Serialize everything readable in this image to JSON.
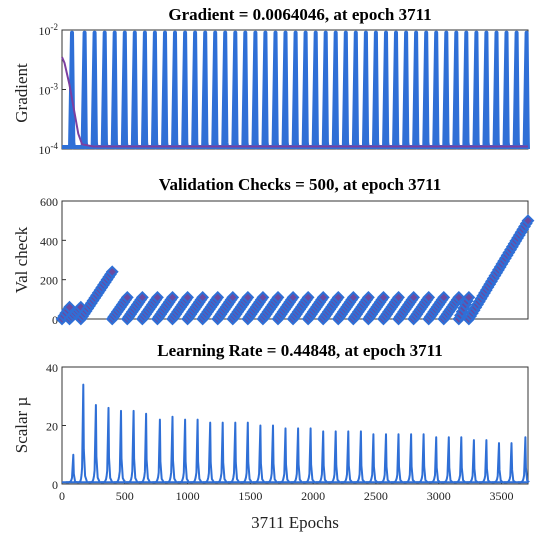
{
  "colors": {
    "series": "#2f6fd6",
    "early": "#7b3fa0",
    "marker": "#6b4aa0",
    "marker_edge": "#2f6fd6",
    "axis": "#333333"
  },
  "chart_data": [
    {
      "type": "line",
      "title": "Gradient = 0.0064046, at epoch 3711",
      "ylabel": "Gradient",
      "xlabel": "",
      "yscale": "log",
      "xlim": [
        0,
        3711
      ],
      "ylim": [
        0.0001,
        0.01
      ],
      "y_ticks": [
        {
          "value": 0.0001,
          "base": "10",
          "exp": "-4"
        },
        {
          "value": 0.001,
          "base": "10",
          "exp": "-3"
        },
        {
          "value": 0.01,
          "base": "10",
          "exp": "-2"
        }
      ],
      "series": [
        {
          "x": [
            0,
            20,
            60,
            100,
            130,
            160,
            250,
            3711
          ],
          "y": [
            0.0035,
            0.0028,
            0.0012,
            0.0004,
            0.00018,
            0.00012,
            0.00011,
            0.00011
          ]
        }
      ],
      "cycle_peaks_x": [
        80,
        180,
        260,
        340,
        420,
        500,
        580,
        660,
        740,
        820,
        900,
        980,
        1060,
        1140,
        1220,
        1300,
        1380,
        1460,
        1540,
        1620,
        1700,
        1780,
        1860,
        1940,
        2020,
        2100,
        2180,
        2260,
        2340,
        2420,
        2500,
        2580,
        2660,
        2740,
        2820,
        2900,
        2980,
        3060,
        3140,
        3220,
        3300,
        3380,
        3460,
        3540,
        3620,
        3700
      ],
      "cycle_peak_y": 0.009,
      "cycle_floor_y": 0.0001,
      "grid": false
    },
    {
      "type": "line",
      "title": "Validation Checks = 500, at epoch 3711",
      "ylabel": "Val check",
      "xlabel": "",
      "xlim": [
        0,
        3711
      ],
      "ylim": [
        0,
        600
      ],
      "y_ticks": [
        0,
        200,
        400,
        600
      ],
      "ramps": [
        {
          "x_start": 0,
          "x_end": 60,
          "y_end": 60
        },
        {
          "x_start": 60,
          "x_end": 150,
          "y_end": 60
        },
        {
          "x_start": 150,
          "x_end": 400,
          "y_end": 240
        },
        {
          "x_start": 400,
          "x_end": 520,
          "y_end": 110
        },
        {
          "x_start": 520,
          "x_end": 640,
          "y_end": 110
        },
        {
          "x_start": 640,
          "x_end": 760,
          "y_end": 110
        },
        {
          "x_start": 760,
          "x_end": 880,
          "y_end": 110
        },
        {
          "x_start": 880,
          "x_end": 1000,
          "y_end": 110
        },
        {
          "x_start": 1000,
          "x_end": 1120,
          "y_end": 110
        },
        {
          "x_start": 1120,
          "x_end": 1240,
          "y_end": 110
        },
        {
          "x_start": 1240,
          "x_end": 1360,
          "y_end": 110
        },
        {
          "x_start": 1360,
          "x_end": 1480,
          "y_end": 110
        },
        {
          "x_start": 1480,
          "x_end": 1600,
          "y_end": 110
        },
        {
          "x_start": 1600,
          "x_end": 1720,
          "y_end": 110
        },
        {
          "x_start": 1720,
          "x_end": 1840,
          "y_end": 110
        },
        {
          "x_start": 1840,
          "x_end": 1960,
          "y_end": 110
        },
        {
          "x_start": 1960,
          "x_end": 2080,
          "y_end": 110
        },
        {
          "x_start": 2080,
          "x_end": 2200,
          "y_end": 110
        },
        {
          "x_start": 2200,
          "x_end": 2320,
          "y_end": 110
        },
        {
          "x_start": 2320,
          "x_end": 2440,
          "y_end": 110
        },
        {
          "x_start": 2440,
          "x_end": 2560,
          "y_end": 110
        },
        {
          "x_start": 2560,
          "x_end": 2680,
          "y_end": 110
        },
        {
          "x_start": 2680,
          "x_end": 2800,
          "y_end": 110
        },
        {
          "x_start": 2800,
          "x_end": 2920,
          "y_end": 110
        },
        {
          "x_start": 2920,
          "x_end": 3040,
          "y_end": 110
        },
        {
          "x_start": 3040,
          "x_end": 3160,
          "y_end": 110
        },
        {
          "x_start": 3160,
          "x_end": 3240,
          "y_end": 110
        },
        {
          "x_start": 3240,
          "x_end": 3711,
          "y_end": 500
        }
      ],
      "grid": false
    },
    {
      "type": "line",
      "title": "Learning Rate = 0.44848, at epoch 3711",
      "ylabel": "Scalar µ",
      "xlabel": "3711 Epochs",
      "xlim": [
        0,
        3711
      ],
      "ylim": [
        0,
        40
      ],
      "y_ticks": [
        0,
        20,
        40
      ],
      "x_ticks": [
        0,
        500,
        1000,
        1500,
        2000,
        2500,
        3000,
        3500
      ],
      "spikes": [
        {
          "x": 90,
          "y": 10
        },
        {
          "x": 170,
          "y": 34
        },
        {
          "x": 270,
          "y": 27
        },
        {
          "x": 370,
          "y": 26
        },
        {
          "x": 470,
          "y": 25
        },
        {
          "x": 570,
          "y": 25
        },
        {
          "x": 670,
          "y": 24
        },
        {
          "x": 780,
          "y": 22
        },
        {
          "x": 880,
          "y": 23
        },
        {
          "x": 980,
          "y": 22
        },
        {
          "x": 1080,
          "y": 22
        },
        {
          "x": 1180,
          "y": 21
        },
        {
          "x": 1280,
          "y": 21
        },
        {
          "x": 1380,
          "y": 21
        },
        {
          "x": 1480,
          "y": 21
        },
        {
          "x": 1580,
          "y": 20
        },
        {
          "x": 1680,
          "y": 20
        },
        {
          "x": 1780,
          "y": 19
        },
        {
          "x": 1880,
          "y": 19
        },
        {
          "x": 1980,
          "y": 19
        },
        {
          "x": 2080,
          "y": 18
        },
        {
          "x": 2180,
          "y": 18
        },
        {
          "x": 2280,
          "y": 18
        },
        {
          "x": 2380,
          "y": 18
        },
        {
          "x": 2480,
          "y": 17
        },
        {
          "x": 2580,
          "y": 17
        },
        {
          "x": 2680,
          "y": 17
        },
        {
          "x": 2780,
          "y": 17
        },
        {
          "x": 2880,
          "y": 17
        },
        {
          "x": 2980,
          "y": 16
        },
        {
          "x": 3080,
          "y": 16
        },
        {
          "x": 3180,
          "y": 16
        },
        {
          "x": 3280,
          "y": 15
        },
        {
          "x": 3380,
          "y": 15
        },
        {
          "x": 3480,
          "y": 14
        },
        {
          "x": 3580,
          "y": 14
        },
        {
          "x": 3690,
          "y": 16
        }
      ],
      "grid": false
    }
  ]
}
